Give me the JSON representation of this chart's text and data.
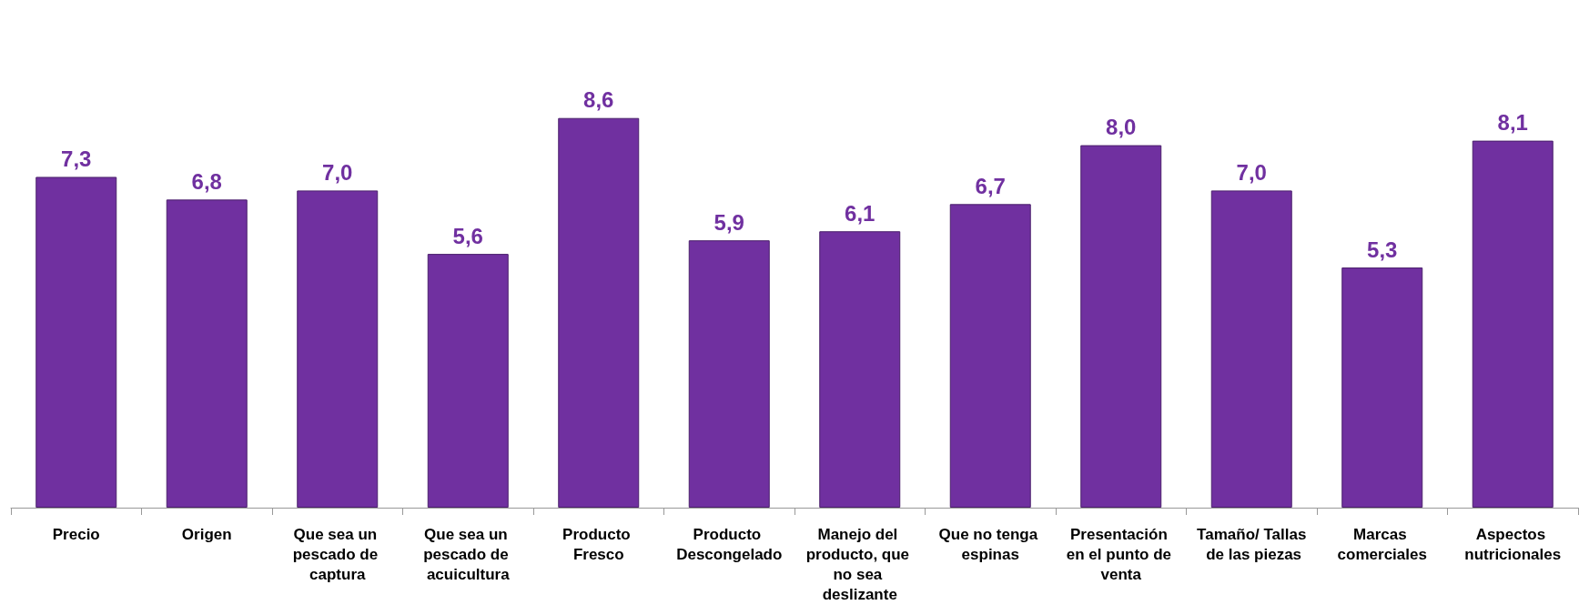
{
  "chart_data": {
    "type": "bar",
    "categories": [
      "Precio",
      "Origen",
      "Que sea un pescado de captura",
      "Que sea un pescado de acuicultura",
      "Producto Fresco",
      "Producto Descongelado",
      "Manejo del producto, que no sea deslizante",
      "Que no tenga espinas",
      "Presentación en el punto de venta",
      "Tamaño/ Tallas de las piezas",
      "Marcas comerciales",
      "Aspectos nutricionales"
    ],
    "values": [
      7.3,
      6.8,
      7.0,
      5.6,
      8.6,
      5.9,
      6.1,
      6.7,
      8.0,
      7.0,
      5.3,
      8.1
    ],
    "value_labels": [
      "7,3",
      "6,8",
      "7,0",
      "5,6",
      "8,6",
      "5,9",
      "6,1",
      "6,7",
      "8,0",
      "7,0",
      "5,3",
      "8,1"
    ],
    "color": "#7030a0"
  }
}
